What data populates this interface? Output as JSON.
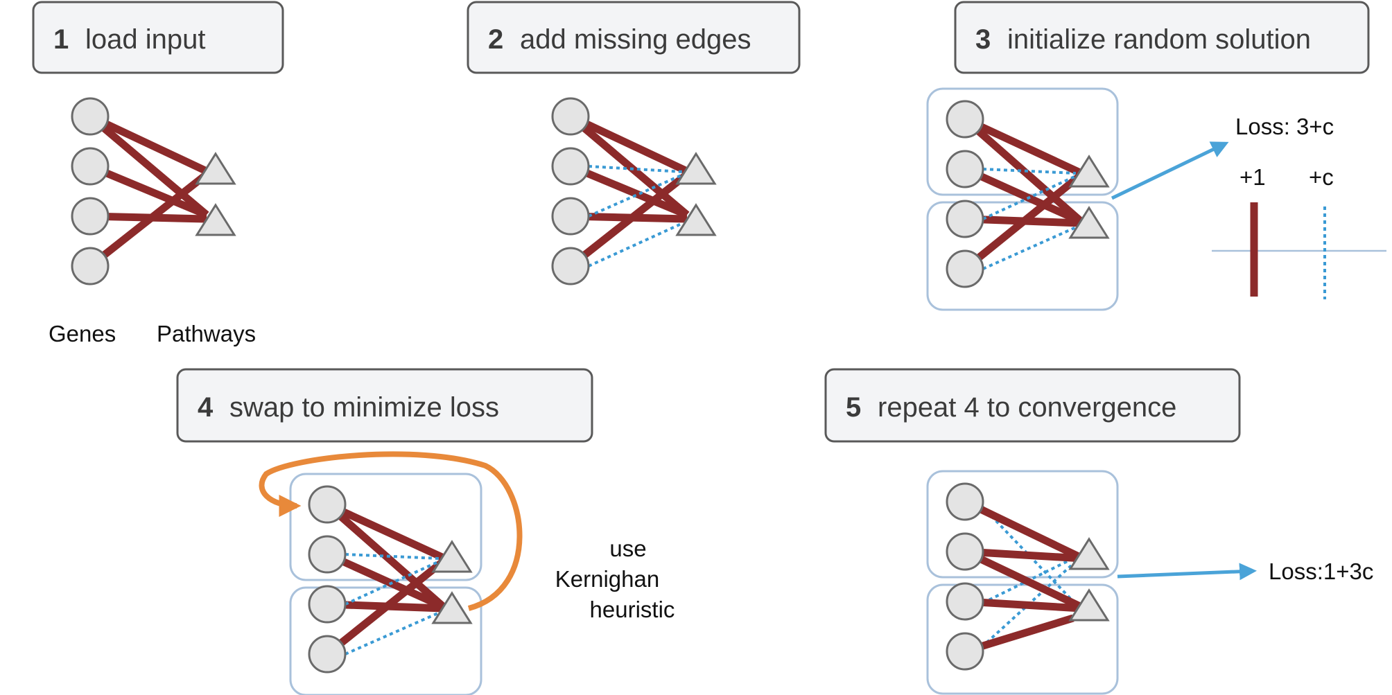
{
  "steps": [
    {
      "num": "1",
      "label": "load input"
    },
    {
      "num": "2",
      "label": "add missing edges"
    },
    {
      "num": "3",
      "label": "initialize random solution"
    },
    {
      "num": "4",
      "label": "swap to minimize loss"
    },
    {
      "num": "5",
      "label": "repeat 4 to convergence"
    }
  ],
  "labels": {
    "genes": "Genes",
    "pathways": "Pathways",
    "loss_initial": "Loss: 3+c",
    "legend_edge": "+1",
    "legend_missing": "+c",
    "heuristic_line1": "use",
    "heuristic_line2": "Kernighan",
    "heuristic_line3": "heuristic",
    "loss_final": "Loss:1+3c"
  },
  "colors": {
    "edge": "#8c2a2a",
    "missing_edge": "#3a9ad4",
    "swap_arrow": "#e8893a",
    "cluster": "#a9c1db"
  }
}
